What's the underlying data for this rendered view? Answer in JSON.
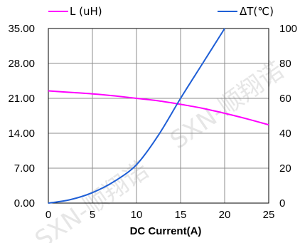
{
  "chart_data": {
    "type": "line",
    "title": "",
    "xlabel": "DC Current(A)",
    "x_ticks": [
      "0",
      "5",
      "10",
      "15",
      "20",
      "25"
    ],
    "xlim": [
      0,
      25
    ],
    "y_left_ticks": [
      "0.00",
      "7.00",
      "14.00",
      "21.00",
      "28.00",
      "35.00"
    ],
    "ylim_left": [
      0,
      35
    ],
    "y_right_ticks": [
      "0",
      "20",
      "40",
      "60",
      "80",
      "100"
    ],
    "ylim_right": [
      0,
      100
    ],
    "grid": true,
    "legend_position": "top",
    "series": [
      {
        "name": "L (uH)",
        "axis": "left",
        "color": "#ff00ff",
        "x": [
          0,
          2.5,
          5,
          7.5,
          10,
          12.5,
          15,
          17.5,
          20,
          22.5,
          25
        ],
        "y": [
          22.5,
          22.2,
          21.9,
          21.5,
          21.0,
          20.5,
          19.8,
          19.0,
          18.0,
          16.9,
          15.7
        ]
      },
      {
        "name": "ΔT(℃)",
        "axis": "right",
        "color": "#1f5fd6",
        "x": [
          0,
          2.5,
          5,
          7.5,
          10,
          12.5,
          15,
          17.5,
          20
        ],
        "y": [
          0,
          2,
          6,
          12.5,
          22,
          39,
          60,
          80,
          100
        ]
      }
    ]
  },
  "watermark": "SXN-顺翔诺"
}
